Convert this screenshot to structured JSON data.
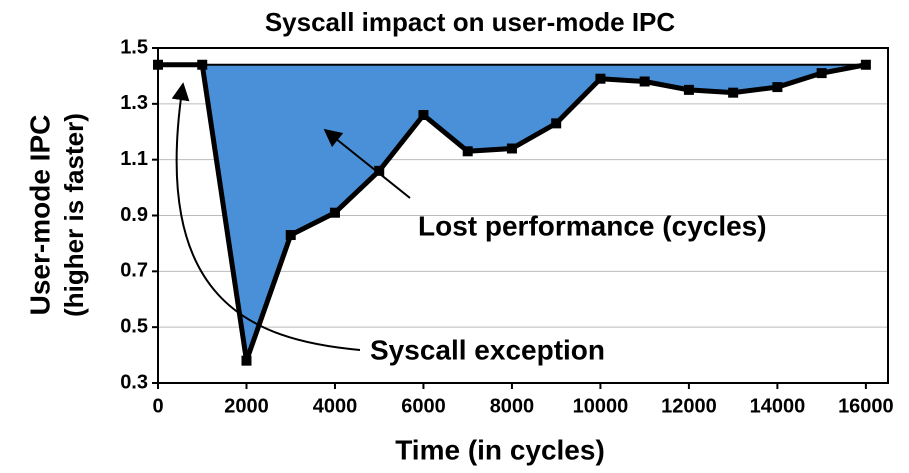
{
  "chart_data": {
    "type": "line",
    "title": "Syscall impact on user-mode IPC",
    "x_label": "Time (in cycles)",
    "y_label": [
      "User-mode IPC",
      "(higher is faster)"
    ],
    "x": [
      0,
      1000,
      2000,
      3000,
      4000,
      5000,
      6000,
      7000,
      8000,
      9000,
      10000,
      11000,
      12000,
      13000,
      14000,
      15000,
      16000
    ],
    "series": [
      {
        "name": "User-mode IPC",
        "color": "#000000",
        "fill": "#4a90d9",
        "values": [
          1.44,
          1.44,
          0.38,
          0.83,
          0.91,
          1.06,
          1.26,
          1.13,
          1.14,
          1.23,
          1.39,
          1.38,
          1.35,
          1.34,
          1.36,
          1.41,
          1.44
        ]
      }
    ],
    "xlim": [
      0,
      16500
    ],
    "xticks": [
      0,
      2000,
      4000,
      6000,
      8000,
      10000,
      12000,
      14000,
      16000
    ],
    "ylim": [
      0.3,
      1.5
    ],
    "yticks": [
      0.3,
      0.5,
      0.7,
      0.9,
      1.1,
      1.3,
      1.5
    ],
    "grid": true,
    "annotations": [
      "Lost performance (cycles)",
      "Syscall exception"
    ]
  }
}
